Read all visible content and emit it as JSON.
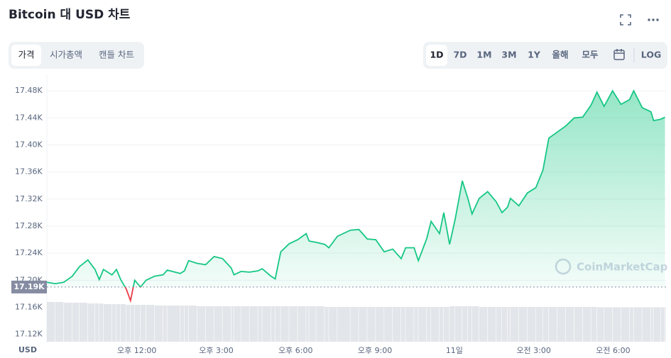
{
  "header": {
    "title": "Bitcoin 대 USD 차트",
    "tabs": [
      "가격",
      "시가총액",
      "캔들 차트"
    ],
    "selected_tab": 0,
    "ranges": [
      "1D",
      "7D",
      "1M",
      "3M",
      "1Y",
      "올해",
      "모두"
    ],
    "selected_range": 0,
    "log": "LOG"
  },
  "chart_data": {
    "type": "line",
    "color": "#16c784",
    "down_color": "#ea3943",
    "grid": true,
    "y_axis_label": "USD",
    "watermark": "CoinMarketCap",
    "reference_line": {
      "value": 17190,
      "label": "17.19K"
    },
    "x": [
      8.6,
      8.92,
      9.24,
      9.56,
      9.83,
      10.15,
      10.42,
      10.58,
      10.74,
      11.06,
      11.23,
      11.39,
      11.6,
      11.76,
      11.92,
      12.14,
      12.35,
      12.67,
      12.99,
      13.15,
      13.64,
      13.8,
      13.96,
      14.28,
      14.6,
      14.92,
      15.24,
      15.57,
      15.67,
      15.94,
      16.26,
      16.58,
      16.74,
      17.07,
      17.23,
      17.44,
      17.76,
      18.08,
      18.4,
      18.51,
      18.78,
      19.1,
      19.26,
      19.58,
      20.07,
      20.39,
      20.71,
      21.03,
      21.35,
      21.67,
      21.99,
      22.16,
      22.48,
      22.64,
      22.96,
      23.12,
      23.44,
      23.6,
      23.82,
      24.03,
      24.3,
      24.51,
      24.67,
      24.94,
      25.26,
      25.58,
      25.8,
      26.01,
      26.12,
      26.44,
      26.76,
      27.08,
      27.35,
      27.57,
      27.89,
      28.21,
      28.53,
      28.85,
      29.17,
      29.39,
      29.66,
      29.98,
      30.3,
      30.62,
      30.78,
      31.1,
      31.43,
      31.53,
      31.8,
      31.96
    ],
    "values": [
      17197,
      17195,
      17197,
      17206,
      17220,
      17230,
      17216,
      17201,
      17216,
      17208,
      17216,
      17201,
      17187,
      17170,
      17200,
      17190,
      17200,
      17206,
      17208,
      17215,
      17210,
      17214,
      17229,
      17225,
      17223,
      17235,
      17232,
      17218,
      17208,
      17213,
      17212,
      17214,
      17217,
      17206,
      17202,
      17242,
      17254,
      17260,
      17269,
      17258,
      17256,
      17253,
      17248,
      17265,
      17274,
      17275,
      17261,
      17260,
      17242,
      17246,
      17232,
      17248,
      17248,
      17229,
      17262,
      17287,
      17269,
      17300,
      17253,
      17290,
      17347,
      17321,
      17298,
      17321,
      17331,
      17316,
      17300,
      17308,
      17321,
      17310,
      17329,
      17337,
      17363,
      17410,
      17419,
      17428,
      17440,
      17441,
      17459,
      17478,
      17457,
      17480,
      17460,
      17467,
      17480,
      17455,
      17449,
      17436,
      17438,
      17441
    ],
    "volume": [
      56,
      56,
      55,
      55,
      55,
      54,
      54,
      54,
      53,
      53,
      53,
      53,
      52,
      52,
      52,
      52,
      52,
      51,
      51,
      51,
      51,
      51,
      51,
      50,
      50,
      50,
      50,
      50,
      50,
      50,
      50,
      50,
      50,
      50,
      50,
      50,
      50,
      50,
      50,
      50,
      50,
      49,
      49,
      49,
      49,
      49,
      49,
      49,
      49,
      49,
      49,
      49,
      49,
      49,
      49,
      49,
      49,
      49,
      50,
      50,
      50,
      50,
      50,
      49,
      49,
      49,
      49,
      49,
      49,
      49,
      49,
      49,
      49,
      49,
      49,
      49,
      49,
      49,
      49,
      48,
      48,
      48,
      48,
      48,
      48,
      48,
      48,
      48,
      48,
      48
    ],
    "volume_color": "#e2e5e9",
    "xlim": [
      8.6,
      32.0
    ],
    "xticks": [
      {
        "value": 12,
        "label": "오후 12:00"
      },
      {
        "value": 15,
        "label": "오후 3:00"
      },
      {
        "value": 18,
        "label": "오후 6:00"
      },
      {
        "value": 21,
        "label": "오후 9:00"
      },
      {
        "value": 24,
        "label": "11일"
      },
      {
        "value": 27,
        "label": "오전 3:00"
      },
      {
        "value": 30,
        "label": "오전 6:00"
      }
    ],
    "ylim": [
      17105,
      17500
    ],
    "yticks": [
      {
        "value": 17120,
        "label": "17.12K"
      },
      {
        "value": 17160,
        "label": "17.16K"
      },
      {
        "value": 17200,
        "label": "17.20K"
      },
      {
        "value": 17240,
        "label": "17.24K"
      },
      {
        "value": 17280,
        "label": "17.28K"
      },
      {
        "value": 17320,
        "label": "17.32K"
      },
      {
        "value": 17360,
        "label": "17.36K"
      },
      {
        "value": 17400,
        "label": "17.40K"
      },
      {
        "value": 17440,
        "label": "17.44K"
      },
      {
        "value": 17480,
        "label": "17.48K"
      }
    ]
  }
}
